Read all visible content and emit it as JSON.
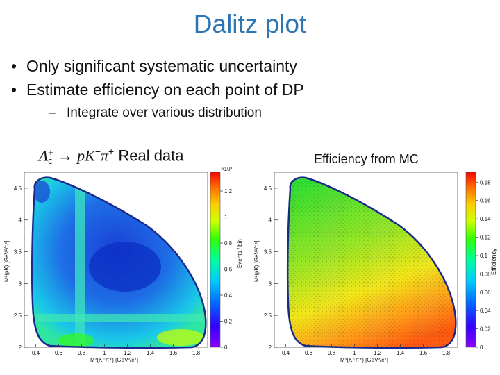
{
  "slide": {
    "title": "Dalitz plot",
    "bullets": [
      "Only significant systematic uncertainty",
      "Estimate efficiency on each point of DP"
    ],
    "sub_bullet": "Integrate over various distribution"
  },
  "left_plot": {
    "title_parts": {
      "lambda": "Λ",
      "lambda_sup": "+",
      "lambda_sub": "c",
      "arrow": " → ",
      "p": "pK",
      "k_sup": "−",
      "pi": "π",
      "pi_sup": "+",
      "rest": " Real data"
    },
    "x_ticks": [
      "0.4",
      "0.6",
      "0.8",
      "1",
      "1.2",
      "1.4",
      "1.6",
      "1.8"
    ],
    "y_ticks": [
      "2",
      "2.5",
      "3",
      "3.5",
      "4",
      "4.5"
    ],
    "x_label": "M²(K⁻π⁺) [GeV²/c⁴]",
    "y_label": "M²(pK) [GeV²/c⁴]",
    "z_ticks": [
      "0",
      "0.2",
      "0.4",
      "0.6",
      "0.8",
      "1",
      "1.2"
    ],
    "z_label": "Events / bin",
    "z_exp": "×10³"
  },
  "right_plot": {
    "title": "Efficiency from MC",
    "x_ticks": [
      "0.4",
      "0.6",
      "0.8",
      "1",
      "1.2",
      "1.4",
      "1.6",
      "1.8"
    ],
    "y_ticks": [
      "2",
      "2.5",
      "3",
      "3.5",
      "4",
      "4.5"
    ],
    "x_label": "M²(K⁻π⁺) [GeV²/c⁴]",
    "y_label": "M²(pK) [GeV²/c⁴]",
    "z_ticks": [
      "0",
      "0.02",
      "0.04",
      "0.06",
      "0.08",
      "0.1",
      "0.12",
      "0.14",
      "0.16",
      "0.18"
    ],
    "z_label": "Efficiency"
  },
  "colors": {
    "title": "#2e75b6",
    "boundary": "#1a2a8c",
    "palette": [
      "#8b00ff",
      "#3300ff",
      "#0066ff",
      "#00ccff",
      "#00ff99",
      "#33ff00",
      "#ccff00",
      "#ffcc00",
      "#ff6600",
      "#ff0000"
    ]
  }
}
